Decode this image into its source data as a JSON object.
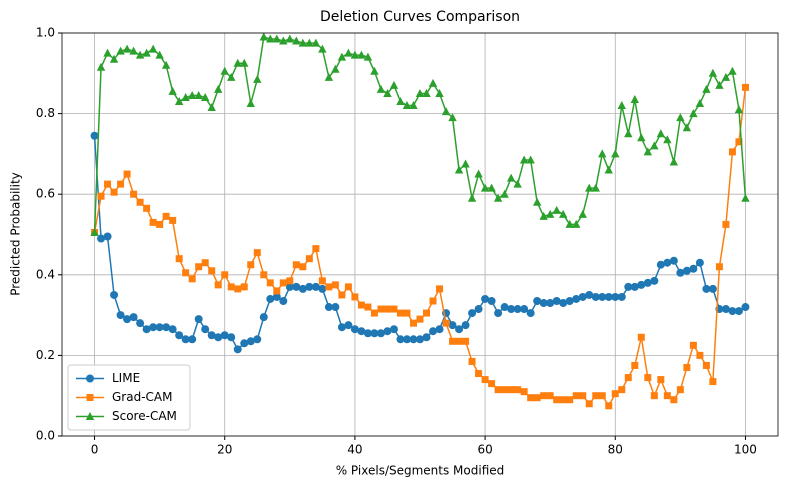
{
  "chart_data": {
    "type": "line",
    "title": "Deletion Curves Comparison",
    "x_label": "% Pixels/Segments Modified",
    "y_label": "Predicted Probability",
    "x": [
      0,
      1,
      2,
      3,
      4,
      5,
      6,
      7,
      8,
      9,
      10,
      11,
      12,
      13,
      14,
      15,
      16,
      17,
      18,
      19,
      20,
      21,
      22,
      23,
      24,
      25,
      26,
      27,
      28,
      29,
      30,
      31,
      32,
      33,
      34,
      35,
      36,
      37,
      38,
      39,
      40,
      41,
      42,
      43,
      44,
      45,
      46,
      47,
      48,
      49,
      50,
      51,
      52,
      53,
      54,
      55,
      56,
      57,
      58,
      59,
      60,
      61,
      62,
      63,
      64,
      65,
      66,
      67,
      68,
      69,
      70,
      71,
      72,
      73,
      74,
      75,
      76,
      77,
      78,
      79,
      80,
      81,
      82,
      83,
      84,
      85,
      86,
      87,
      88,
      89,
      90,
      91,
      92,
      93,
      94,
      95,
      96,
      97,
      98,
      99,
      100
    ],
    "series": [
      {
        "name": "LIME",
        "color": "#1f77b4",
        "marker": "circle",
        "values": [
          0.745,
          0.49,
          0.495,
          0.35,
          0.3,
          0.29,
          0.295,
          0.28,
          0.265,
          0.27,
          0.27,
          0.27,
          0.265,
          0.25,
          0.24,
          0.24,
          0.29,
          0.265,
          0.25,
          0.245,
          0.25,
          0.245,
          0.215,
          0.23,
          0.235,
          0.24,
          0.295,
          0.34,
          0.345,
          0.335,
          0.37,
          0.37,
          0.365,
          0.37,
          0.37,
          0.365,
          0.32,
          0.32,
          0.27,
          0.275,
          0.265,
          0.26,
          0.255,
          0.255,
          0.255,
          0.26,
          0.265,
          0.24,
          0.24,
          0.24,
          0.24,
          0.245,
          0.26,
          0.265,
          0.305,
          0.275,
          0.265,
          0.275,
          0.305,
          0.315,
          0.34,
          0.335,
          0.305,
          0.32,
          0.315,
          0.315,
          0.315,
          0.305,
          0.335,
          0.33,
          0.33,
          0.335,
          0.33,
          0.335,
          0.34,
          0.345,
          0.35,
          0.345,
          0.345,
          0.345,
          0.345,
          0.345,
          0.37,
          0.37,
          0.375,
          0.38,
          0.385,
          0.425,
          0.43,
          0.435,
          0.405,
          0.41,
          0.415,
          0.43,
          0.365,
          0.365,
          0.315,
          0.315,
          0.31,
          0.31,
          0.32
        ]
      },
      {
        "name": "Grad-CAM",
        "color": "#ff7f0e",
        "marker": "square",
        "values": [
          0.505,
          0.595,
          0.625,
          0.605,
          0.625,
          0.65,
          0.6,
          0.58,
          0.565,
          0.53,
          0.525,
          0.545,
          0.535,
          0.44,
          0.405,
          0.39,
          0.42,
          0.43,
          0.41,
          0.375,
          0.4,
          0.37,
          0.365,
          0.37,
          0.425,
          0.455,
          0.4,
          0.38,
          0.36,
          0.38,
          0.385,
          0.425,
          0.42,
          0.44,
          0.465,
          0.385,
          0.37,
          0.375,
          0.35,
          0.37,
          0.345,
          0.325,
          0.32,
          0.305,
          0.315,
          0.315,
          0.315,
          0.305,
          0.305,
          0.28,
          0.29,
          0.305,
          0.335,
          0.365,
          0.28,
          0.235,
          0.235,
          0.235,
          0.185,
          0.155,
          0.14,
          0.13,
          0.115,
          0.115,
          0.115,
          0.115,
          0.11,
          0.095,
          0.095,
          0.1,
          0.1,
          0.09,
          0.09,
          0.09,
          0.1,
          0.1,
          0.08,
          0.1,
          0.1,
          0.075,
          0.105,
          0.115,
          0.145,
          0.175,
          0.245,
          0.145,
          0.1,
          0.14,
          0.1,
          0.09,
          0.115,
          0.17,
          0.225,
          0.2,
          0.175,
          0.135,
          0.42,
          0.525,
          0.705,
          0.73,
          0.865
        ]
      },
      {
        "name": "Score-CAM",
        "color": "#2ca02c",
        "marker": "triangle",
        "values": [
          0.505,
          0.915,
          0.95,
          0.935,
          0.955,
          0.96,
          0.955,
          0.945,
          0.95,
          0.96,
          0.945,
          0.92,
          0.855,
          0.83,
          0.84,
          0.845,
          0.845,
          0.84,
          0.815,
          0.86,
          0.905,
          0.89,
          0.925,
          0.925,
          0.825,
          0.885,
          0.99,
          0.985,
          0.985,
          0.98,
          0.985,
          0.98,
          0.975,
          0.975,
          0.975,
          0.96,
          0.89,
          0.91,
          0.94,
          0.95,
          0.945,
          0.945,
          0.94,
          0.905,
          0.86,
          0.85,
          0.87,
          0.83,
          0.82,
          0.82,
          0.85,
          0.85,
          0.875,
          0.85,
          0.805,
          0.79,
          0.66,
          0.675,
          0.59,
          0.65,
          0.615,
          0.615,
          0.59,
          0.6,
          0.64,
          0.625,
          0.685,
          0.685,
          0.58,
          0.545,
          0.55,
          0.56,
          0.55,
          0.525,
          0.525,
          0.55,
          0.615,
          0.615,
          0.7,
          0.66,
          0.7,
          0.82,
          0.75,
          0.835,
          0.74,
          0.705,
          0.72,
          0.75,
          0.735,
          0.68,
          0.79,
          0.765,
          0.8,
          0.825,
          0.86,
          0.9,
          0.87,
          0.89,
          0.905,
          0.81,
          0.59
        ]
      }
    ],
    "xlim": [
      -5,
      105
    ],
    "xticks": [
      0,
      20,
      40,
      60,
      80,
      100
    ],
    "ylim": [
      0,
      1
    ],
    "yticks": [
      {
        "value": 0,
        "label": "0.0"
      },
      {
        "value": 0.2,
        "label": "0.2"
      },
      {
        "value": 0.4,
        "label": "0.4"
      },
      {
        "value": 0.6,
        "label": "0.6"
      },
      {
        "value": 0.8,
        "label": "0.8"
      },
      {
        "value": 1,
        "label": "1.0"
      }
    ],
    "grid": true,
    "legend": "lower left"
  }
}
